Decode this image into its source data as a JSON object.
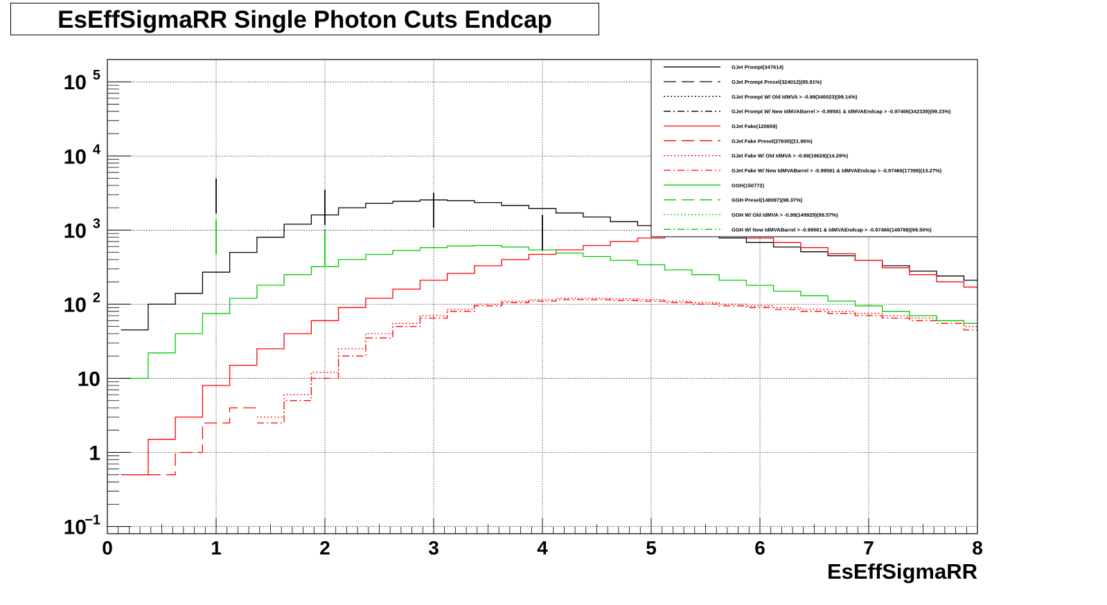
{
  "title": "EsEffSigmaRR Single Photon Cuts Endcap",
  "chart_data": {
    "type": "line",
    "title": "EsEffSigmaRR Single Photon Cuts Endcap",
    "xlabel": "EsEffSigmaRR",
    "ylabel": "",
    "xlim": [
      0,
      8
    ],
    "ylim": [
      0.08,
      200000
    ],
    "yscale": "log",
    "grid": true,
    "legend_position": "top-right",
    "x_ticks": [
      "0",
      "1",
      "2",
      "3",
      "4",
      "5",
      "6",
      "7",
      "8"
    ],
    "y_ticks": [
      {
        "value": 0.1,
        "base": "10",
        "exp": "−1"
      },
      {
        "value": 1,
        "base": "1",
        "exp": ""
      },
      {
        "value": 10,
        "base": "10",
        "exp": ""
      },
      {
        "value": 100,
        "base": "10",
        "exp": "2"
      },
      {
        "value": 1000,
        "base": "10",
        "exp": "3"
      },
      {
        "value": 10000,
        "base": "10",
        "exp": "4"
      },
      {
        "value": 100000,
        "base": "10",
        "exp": "5"
      }
    ],
    "x": [
      0.25,
      0.5,
      0.75,
      1.0,
      1.25,
      1.5,
      1.75,
      2.0,
      2.25,
      2.5,
      2.75,
      3.0,
      3.25,
      3.5,
      3.75,
      4.0,
      4.25,
      4.5,
      4.75,
      5.0,
      5.25,
      5.5,
      5.75,
      6.0,
      6.25,
      6.5,
      6.75,
      7.0,
      7.25,
      7.5,
      7.75,
      8.0
    ],
    "series": [
      {
        "name": "GJet Prompt(347614)",
        "color": "#000000",
        "dash": "solid",
        "values": [
          45,
          100,
          140,
          270,
          500,
          800,
          1200,
          1600,
          2000,
          2300,
          2450,
          2550,
          2500,
          2350,
          2150,
          1950,
          1700,
          1500,
          1300,
          1150,
          1000,
          880,
          780,
          680,
          590,
          510,
          450,
          390,
          330,
          280,
          240,
          210
        ]
      },
      {
        "name": "GJet Prompt Presel(324012)(95.91%)",
        "color": "#000000",
        "dash": "long-dash",
        "values": [
          null,
          null,
          null,
          null,
          null,
          null,
          null,
          null,
          null,
          null,
          null,
          null,
          null,
          null,
          null,
          null,
          null,
          null,
          null,
          null,
          null,
          null,
          null,
          null,
          null,
          null,
          null,
          null,
          null,
          null,
          null,
          null
        ]
      },
      {
        "name": "GJet Prompt W/ Old IdMVA > -0.99(340023)(99.14%)",
        "color": "#000000",
        "dash": "dotted",
        "values": [
          null,
          null,
          null,
          null,
          null,
          null,
          null,
          null,
          null,
          null,
          null,
          null,
          null,
          null,
          null,
          null,
          null,
          null,
          null,
          null,
          null,
          null,
          null,
          null,
          null,
          null,
          null,
          null,
          null,
          null,
          null,
          null
        ]
      },
      {
        "name": "GJet Prompt W/ New IdMVABarrel > -0.99581 & IdMVAEndcap > -0.97466(342339)(99.23%)",
        "color": "#000000",
        "dash": "dash-dot",
        "values": [
          null,
          null,
          null,
          null,
          null,
          null,
          null,
          null,
          null,
          null,
          null,
          null,
          null,
          null,
          null,
          null,
          null,
          null,
          null,
          null,
          null,
          null,
          null,
          null,
          null,
          null,
          null,
          null,
          null,
          null,
          null,
          null
        ]
      },
      {
        "name": "GJet Fake(120659)",
        "color": "#ff0000",
        "dash": "solid",
        "values": [
          0.5,
          1.5,
          3,
          8,
          15,
          25,
          40,
          60,
          90,
          120,
          160,
          210,
          260,
          330,
          400,
          470,
          540,
          620,
          700,
          780,
          840,
          880,
          850,
          780,
          680,
          580,
          480,
          390,
          310,
          250,
          200,
          170
        ]
      },
      {
        "name": "GJet Fake Presel(27830)(21.96%)",
        "color": "#ff0000",
        "dash": "long-dash",
        "values": [
          null,
          0.5,
          1,
          2.5,
          4,
          null,
          null,
          null,
          null,
          null,
          null,
          null,
          null,
          null,
          null,
          null,
          null,
          null,
          null,
          null,
          null,
          null,
          null,
          null,
          null,
          null,
          null,
          null,
          null,
          null,
          null,
          null
        ]
      },
      {
        "name": "GJet Fake W/ Old IdMVA > -0.99(18628)(14.29%)",
        "color": "#ff0000",
        "dash": "dotted",
        "values": [
          null,
          null,
          null,
          null,
          null,
          3,
          6,
          12,
          25,
          40,
          55,
          70,
          85,
          100,
          110,
          115,
          120,
          120,
          118,
          115,
          110,
          105,
          100,
          95,
          90,
          85,
          80,
          75,
          70,
          65,
          60,
          50
        ]
      },
      {
        "name": "GJet Fake W/ New IdMVABarrel > -0.99581 & IdMVAEndcap > -0.97466(17398)(13.27%)",
        "color": "#ff0000",
        "dash": "dash-dot",
        "values": [
          null,
          null,
          null,
          null,
          null,
          2.5,
          5,
          10,
          20,
          35,
          50,
          65,
          80,
          95,
          105,
          110,
          115,
          115,
          112,
          110,
          105,
          100,
          95,
          90,
          85,
          80,
          75,
          70,
          65,
          60,
          55,
          45
        ]
      },
      {
        "name": "GGH(150772)",
        "color": "#00cc00",
        "dash": "solid",
        "values": [
          10,
          22,
          40,
          75,
          120,
          180,
          250,
          320,
          400,
          470,
          530,
          580,
          610,
          620,
          590,
          540,
          490,
          440,
          390,
          340,
          290,
          250,
          210,
          180,
          150,
          130,
          110,
          95,
          80,
          70,
          60,
          55
        ]
      },
      {
        "name": "GGH Presel(148097)(98.37%)",
        "color": "#00cc00",
        "dash": "long-dash",
        "values": [
          null,
          null,
          null,
          null,
          null,
          null,
          null,
          null,
          null,
          null,
          null,
          null,
          null,
          null,
          null,
          null,
          null,
          null,
          null,
          null,
          null,
          null,
          null,
          null,
          null,
          null,
          null,
          null,
          null,
          null,
          null,
          null
        ]
      },
      {
        "name": "GGH W/ Old IdMVA > -0.99(149929)(99.57%)",
        "color": "#00cc00",
        "dash": "dotted",
        "values": [
          null,
          null,
          null,
          null,
          null,
          null,
          null,
          null,
          null,
          null,
          null,
          null,
          null,
          null,
          null,
          null,
          null,
          null,
          null,
          null,
          null,
          null,
          null,
          null,
          null,
          null,
          null,
          null,
          null,
          null,
          null,
          null
        ]
      },
      {
        "name": "GGH W/ New IdMVABarrel > -0.99581 & IdMVAEndcap > -0.97466(149788)(99.50%)",
        "color": "#00cc00",
        "dash": "dash-dot",
        "values": [
          null,
          null,
          null,
          null,
          null,
          null,
          null,
          null,
          null,
          null,
          null,
          null,
          null,
          null,
          null,
          null,
          null,
          null,
          null,
          null,
          null,
          null,
          null,
          null,
          null,
          null,
          null,
          null,
          null,
          null,
          null,
          null
        ]
      }
    ],
    "spikes": [
      {
        "x": 1.0,
        "series": "GJet Prompt(347614)",
        "value": 5000
      },
      {
        "x": 1.0,
        "series": "GGH(150772)",
        "value": 1400
      },
      {
        "x": 2.0,
        "series": "GJet Prompt(347614)",
        "value": 3500
      },
      {
        "x": 2.0,
        "series": "GGH(150772)",
        "value": 1000
      },
      {
        "x": 3.0,
        "series": "GJet Prompt(347614)",
        "value": 3200
      },
      {
        "x": 4.0,
        "series": "GJet Prompt(347614)",
        "value": 1600
      }
    ]
  }
}
